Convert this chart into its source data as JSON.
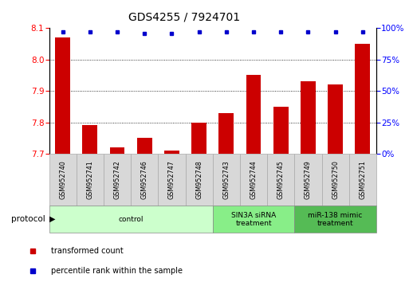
{
  "title": "GDS4255 / 7924701",
  "categories": [
    "GSM952740",
    "GSM952741",
    "GSM952742",
    "GSM952746",
    "GSM952747",
    "GSM952748",
    "GSM952743",
    "GSM952744",
    "GSM952745",
    "GSM952749",
    "GSM952750",
    "GSM952751"
  ],
  "bar_values": [
    8.07,
    7.79,
    7.72,
    7.75,
    7.71,
    7.8,
    7.83,
    7.95,
    7.85,
    7.93,
    7.92,
    8.05
  ],
  "percentile_values": [
    97,
    97,
    97,
    96,
    96,
    97,
    97,
    97,
    97,
    97,
    97,
    97
  ],
  "bar_color": "#cc0000",
  "percentile_color": "#0000cc",
  "ylim_left": [
    7.7,
    8.1
  ],
  "ylim_right": [
    0,
    100
  ],
  "yticks_left": [
    7.7,
    7.8,
    7.9,
    8.0,
    8.1
  ],
  "yticks_right": [
    0,
    25,
    50,
    75,
    100
  ],
  "grid_lines": [
    7.8,
    7.9,
    8.0
  ],
  "group_colors": [
    "#ccffcc",
    "#88ee88",
    "#55bb55"
  ],
  "group_labels": [
    "control",
    "SIN3A siRNA\ntreatment",
    "miR-138 mimic\ntreatment"
  ],
  "group_ranges": [
    [
      0,
      6
    ],
    [
      6,
      9
    ],
    [
      9,
      12
    ]
  ],
  "legend_labels": [
    "transformed count",
    "percentile rank within the sample"
  ],
  "legend_colors": [
    "#cc0000",
    "#0000cc"
  ],
  "background_color": "#ffffff",
  "title_fontsize": 10,
  "bar_width": 0.55
}
